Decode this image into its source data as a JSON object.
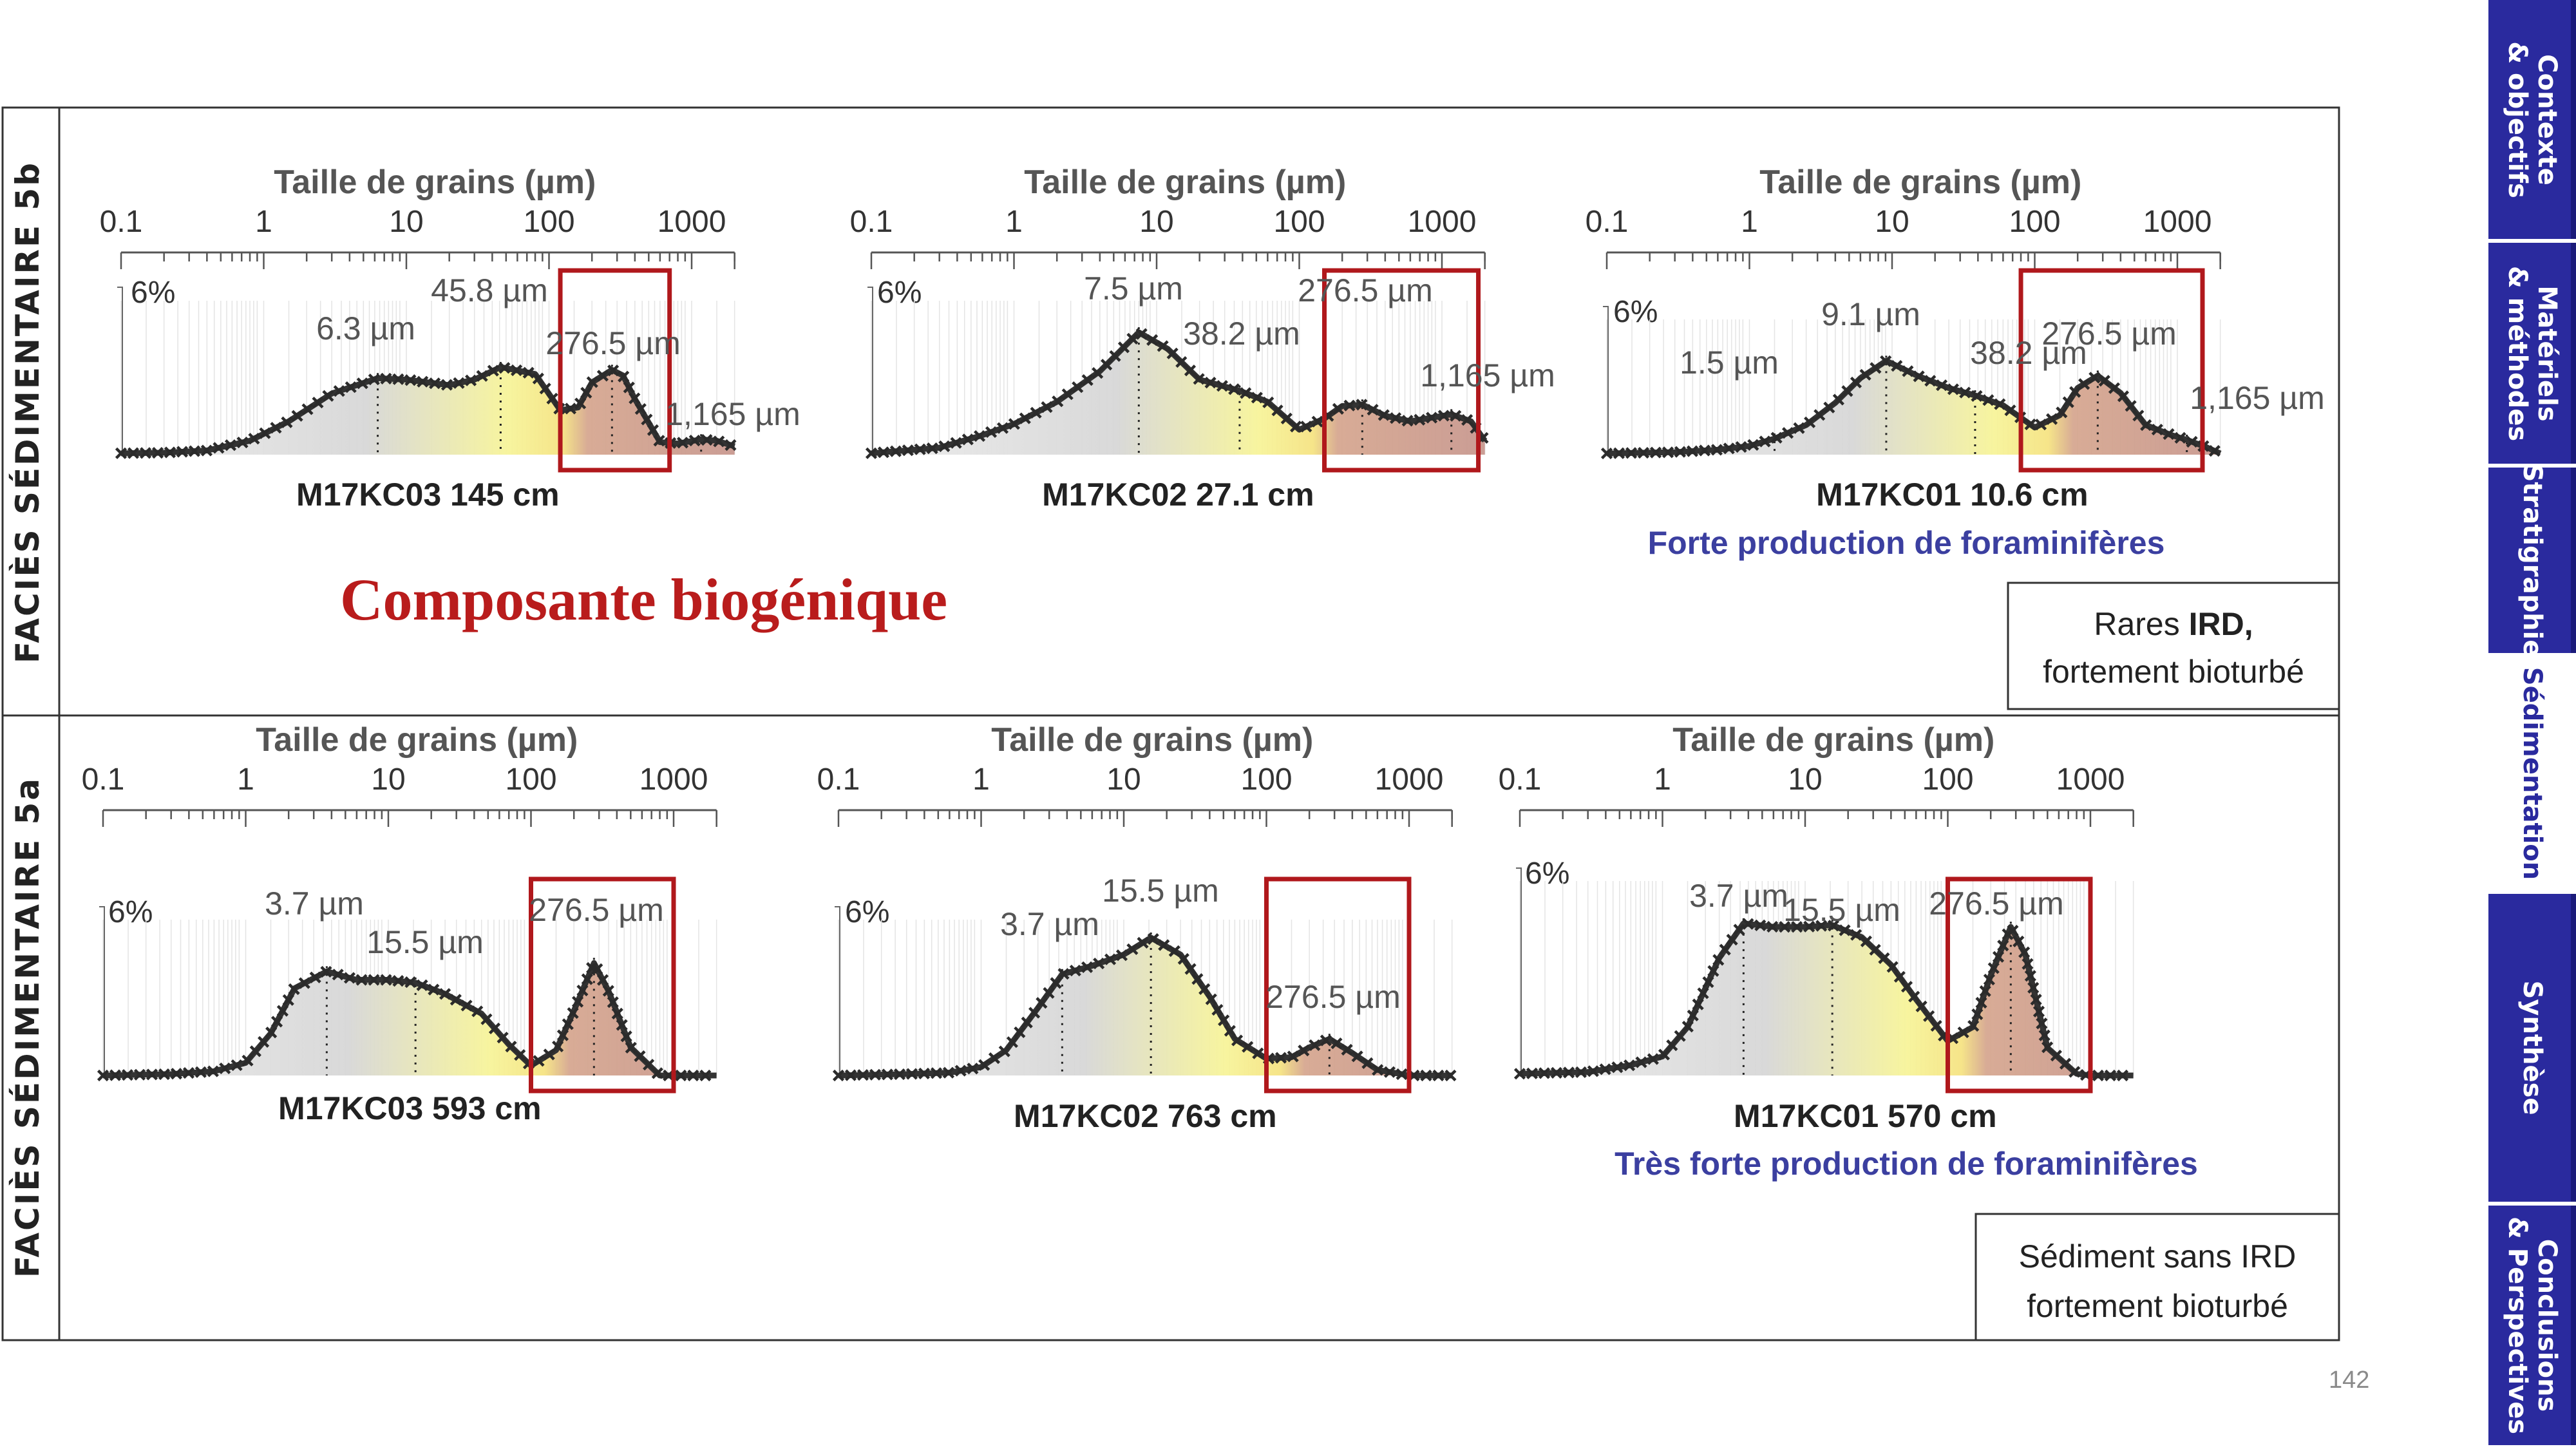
{
  "page_number": "142",
  "sidebar": {
    "items": [
      {
        "label": "Contexte\n& objectifs",
        "active": false
      },
      {
        "label": "Matériels\n& méthodes",
        "active": false
      },
      {
        "label": "Stratigraphie",
        "active": false
      },
      {
        "label": "Sédimentation",
        "active": true
      },
      {
        "label": "Synthèse",
        "active": false
      },
      {
        "label": "Conclusions\n& Perspectives",
        "active": false
      }
    ]
  },
  "rows": [
    {
      "facies_label": "FACIÈS SÉDIMENTAIRE 5b"
    },
    {
      "facies_label": "FACIÈS SÉDIMENTAIRE 5a"
    }
  ],
  "headline": "Composante biogénique",
  "colors": {
    "accent_red": "#b91c1c",
    "note_blue": "#3b3fa0",
    "nav_blue": "#2a2a9e",
    "curve": "#333333",
    "box_red": "#b0181c"
  },
  "notes": [
    {
      "line1_pre": "Rares ",
      "line1_bold": "IRD,",
      "line2": "fortement bioturbé"
    },
    {
      "line1_pre": "Sédiment sans IRD",
      "line1_bold": "",
      "line2": "fortement bioturbé"
    }
  ],
  "chart_data": [
    {
      "type": "area",
      "sample": "M17KC03 145 cm",
      "xlabel": "Taille de grains (µm)",
      "x_ticks": [
        "0.1",
        "1",
        "10",
        "100",
        "1000"
      ],
      "x_scale": "log",
      "y_max_label": "6%",
      "subtitle": "",
      "modes": [
        {
          "label": "6.3 µm",
          "x": 6.3
        },
        {
          "label": "45.8 µm",
          "x": 45.8
        },
        {
          "label": "276.5 µm",
          "x": 276.5
        },
        {
          "label": "1,165 µm",
          "x": 1165
        }
      ],
      "highlight_range": [
        120,
        700
      ],
      "x": [
        0.1,
        0.2,
        0.4,
        0.8,
        1.5,
        3,
        6.3,
        10,
        20,
        30,
        45.8,
        80,
        120,
        160,
        200,
        276.5,
        330,
        400,
        600,
        800,
        1165,
        1500,
        2000
      ],
      "y": [
        0.05,
        0.07,
        0.15,
        0.5,
        1.2,
        2.2,
        2.75,
        2.7,
        2.5,
        2.7,
        3.15,
        2.9,
        1.6,
        1.7,
        2.6,
        3.05,
        2.85,
        2.0,
        0.45,
        0.4,
        0.55,
        0.5,
        0.3
      ]
    },
    {
      "type": "area",
      "sample": "M17KC02 27.1 cm",
      "xlabel": "Taille de grains (µm)",
      "x_ticks": [
        "0.1",
        "1",
        "10",
        "100",
        "1000"
      ],
      "x_scale": "log",
      "y_max_label": "6%",
      "subtitle": "",
      "modes": [
        {
          "label": "7.5 µm",
          "x": 7.5
        },
        {
          "label": "38.2 µm",
          "x": 38.2
        },
        {
          "label": "276.5 µm",
          "x": 276.5
        },
        {
          "label": "1,165 µm",
          "x": 1165
        }
      ],
      "highlight_range": [
        150,
        1800
      ],
      "x": [
        0.1,
        0.3,
        0.6,
        1,
        2,
        4,
        7.5,
        12,
        20,
        38.2,
        60,
        100,
        150,
        200,
        276.5,
        400,
        600,
        1165,
        1600,
        2000
      ],
      "y": [
        0.05,
        0.25,
        0.7,
        1.1,
        1.9,
        3.0,
        4.4,
        3.8,
        2.7,
        2.3,
        1.9,
        0.9,
        1.3,
        1.75,
        1.8,
        1.4,
        1.2,
        1.45,
        1.2,
        0.5
      ]
    },
    {
      "type": "area",
      "sample": "M17KC01 10.6 cm",
      "xlabel": "Taille de grains (µm)",
      "x_ticks": [
        "0.1",
        "1",
        "10",
        "100",
        "1000"
      ],
      "x_scale": "log",
      "y_max_label": "6%",
      "subtitle": "Forte production de foraminifères",
      "modes": [
        {
          "label": "1.5 µm",
          "x": 1.5
        },
        {
          "label": "9.1 µm",
          "x": 9.1
        },
        {
          "label": "38.2 µm",
          "x": 38.2
        },
        {
          "label": "276.5 µm",
          "x": 276.5
        },
        {
          "label": "1,165 µm",
          "x": 1165
        }
      ],
      "highlight_range": [
        80,
        1500
      ],
      "x": [
        0.1,
        0.3,
        0.6,
        1,
        1.5,
        2.5,
        4,
        6,
        9.1,
        15,
        25,
        38.2,
        60,
        100,
        150,
        200,
        276.5,
        400,
        600,
        900,
        1165,
        1600,
        2000
      ],
      "y": [
        0.05,
        0.1,
        0.2,
        0.35,
        0.65,
        1.2,
        2.1,
        3.1,
        3.8,
        3.2,
        2.7,
        2.4,
        2.0,
        1.1,
        1.6,
        2.7,
        3.2,
        2.5,
        1.2,
        0.8,
        0.6,
        0.3,
        0.05
      ]
    },
    {
      "type": "area",
      "sample": "M17KC03 593 cm",
      "xlabel": "Taille de grains (µm)",
      "x_ticks": [
        "0.1",
        "1",
        "10",
        "100",
        "1000"
      ],
      "x_scale": "log",
      "y_max_label": "6%",
      "subtitle": "",
      "modes": [
        {
          "label": "3.7 µm",
          "x": 3.7
        },
        {
          "label": "15.5 µm",
          "x": 15.5
        },
        {
          "label": "276.5 µm",
          "x": 276.5
        }
      ],
      "highlight_range": [
        100,
        1000
      ],
      "x": [
        0.1,
        0.3,
        0.6,
        1,
        1.5,
        2.2,
        3.7,
        6,
        10,
        15.5,
        25,
        45,
        70,
        100,
        150,
        200,
        276.5,
        350,
        500,
        800,
        1000,
        1500,
        2000
      ],
      "y": [
        0,
        0.05,
        0.15,
        0.45,
        1.5,
        3.1,
        3.7,
        3.4,
        3.4,
        3.3,
        2.9,
        2.2,
        1.1,
        0.35,
        0.9,
        2.3,
        4.0,
        3.0,
        1.0,
        0,
        0,
        0,
        0
      ]
    },
    {
      "type": "area",
      "sample": "M17KC02 763 cm",
      "xlabel": "Taille de grains (µm)",
      "x_ticks": [
        "0.1",
        "1",
        "10",
        "100",
        "1000"
      ],
      "x_scale": "log",
      "y_max_label": "6%",
      "subtitle": "",
      "modes": [
        {
          "label": "3.7 µm",
          "x": 3.7
        },
        {
          "label": "15.5 µm",
          "x": 15.5
        },
        {
          "label": "276.5 µm",
          "x": 276.5
        }
      ],
      "highlight_range": [
        100,
        1000
      ],
      "x": [
        0.1,
        0.3,
        0.6,
        1,
        1.5,
        2.5,
        3.7,
        6,
        10,
        15.5,
        25,
        40,
        60,
        100,
        150,
        200,
        276.5,
        400,
        600,
        1000,
        1500,
        2000
      ],
      "y": [
        0,
        0.05,
        0.1,
        0.3,
        0.9,
        2.4,
        3.6,
        3.9,
        4.3,
        4.9,
        4.3,
        2.8,
        1.3,
        0.6,
        0.65,
        1.0,
        1.3,
        0.8,
        0.2,
        0,
        0,
        0
      ]
    },
    {
      "type": "area",
      "sample": "M17KC01 570 cm",
      "xlabel": "Taille de grains (µm)",
      "x_ticks": [
        "0.1",
        "1",
        "10",
        "100",
        "1000"
      ],
      "x_scale": "log",
      "y_max_label": "6%",
      "subtitle": "Très forte production de foraminifères",
      "modes": [
        {
          "label": "3.7 µm",
          "x": 3.7
        },
        {
          "label": "15.5 µm",
          "x": 15.5
        },
        {
          "label": "276.5 µm",
          "x": 276.5
        }
      ],
      "highlight_range": [
        100,
        1000
      ],
      "x": [
        0.1,
        0.3,
        0.6,
        1,
        1.5,
        2.5,
        3.7,
        6,
        10,
        15.5,
        25,
        40,
        60,
        100,
        150,
        200,
        276.5,
        350,
        500,
        800,
        1000,
        1500,
        2000
      ],
      "y": [
        0.05,
        0.1,
        0.3,
        0.55,
        1.4,
        3.4,
        4.4,
        4.3,
        4.3,
        4.35,
        4.0,
        3.2,
        2.2,
        1.0,
        1.4,
        2.9,
        4.3,
        3.5,
        0.8,
        0.05,
        0,
        0,
        0
      ]
    }
  ]
}
